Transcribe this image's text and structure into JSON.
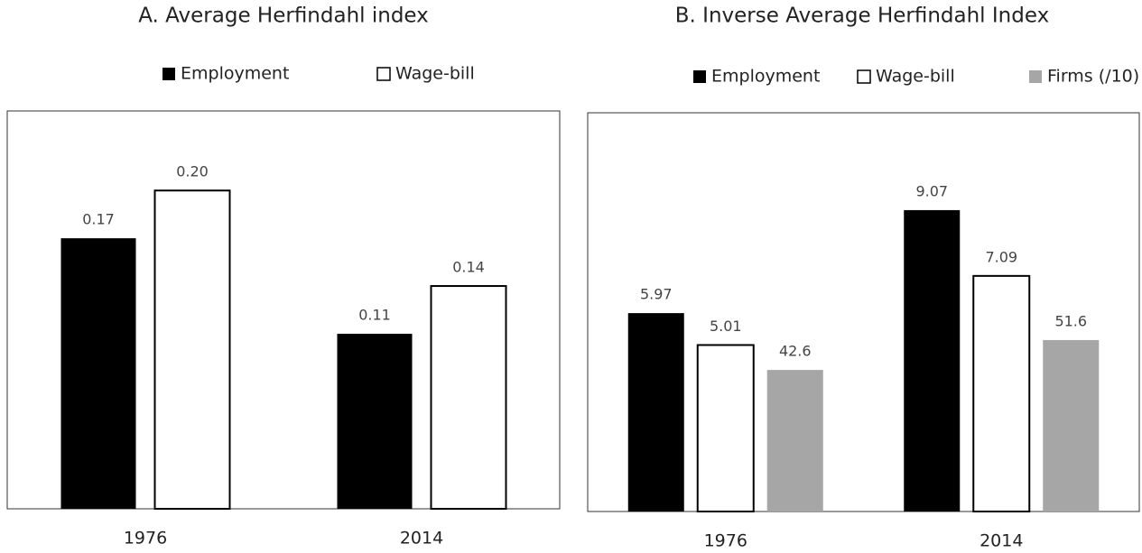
{
  "chart_data": [
    {
      "type": "bar",
      "title": "A. Average Herfindahl index",
      "categories": [
        "1976",
        "2014"
      ],
      "series": [
        {
          "name": "Employment",
          "color": "#000000",
          "values": [
            0.17,
            0.11
          ],
          "value_labels": [
            "0.17",
            "0.11"
          ]
        },
        {
          "name": "Wage-bill",
          "color": "#ffffff",
          "values": [
            0.2,
            0.14
          ],
          "value_labels": [
            "0.20",
            "0.14"
          ]
        }
      ],
      "ylim": [
        0,
        0.25
      ]
    },
    {
      "type": "bar",
      "title": "B. Inverse Average Herfindahl Index",
      "categories": [
        "1976",
        "2014"
      ],
      "series": [
        {
          "name": "Employment",
          "color": "#000000",
          "values": [
            5.97,
            9.07
          ],
          "value_labels": [
            "5.97",
            "9.07"
          ]
        },
        {
          "name": "Wage-bill",
          "color": "#ffffff",
          "values": [
            5.01,
            7.09
          ],
          "value_labels": [
            "5.01",
            "7.09"
          ]
        },
        {
          "name": "Firms (/10)",
          "color": "#a6a6a6",
          "values": [
            4.26,
            5.16
          ],
          "value_labels": [
            "42.6",
            "51.6"
          ]
        }
      ],
      "ylim": [
        0,
        12
      ]
    }
  ]
}
